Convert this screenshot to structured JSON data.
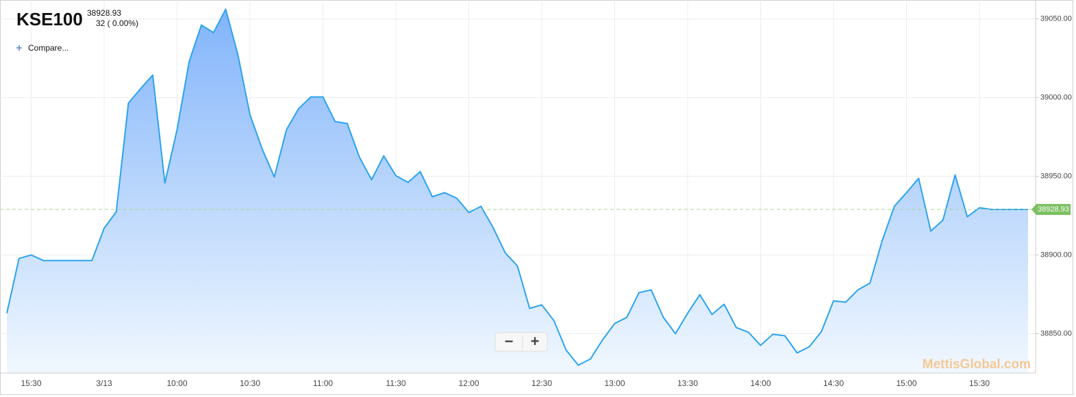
{
  "header": {
    "symbol": "KSE100",
    "price": "38928.93",
    "change": "32 ( 0.00%)",
    "compare": "Compare..."
  },
  "watermark": "MettisGlobal.com",
  "zoom": {
    "out": "−",
    "in": "+"
  },
  "chart_data": {
    "type": "area",
    "categories": [
      null,
      null,
      "15:30",
      null,
      null,
      null,
      null,
      null,
      "3/13",
      null,
      null,
      null,
      null,
      null,
      "10:00",
      null,
      null,
      null,
      null,
      null,
      "10:30",
      null,
      null,
      null,
      null,
      null,
      "11:00",
      null,
      null,
      null,
      null,
      null,
      "11:30",
      null,
      null,
      null,
      null,
      null,
      "12:00",
      null,
      null,
      null,
      null,
      null,
      "12:30",
      null,
      null,
      null,
      null,
      null,
      "13:00",
      null,
      null,
      null,
      null,
      null,
      "13:30",
      null,
      null,
      null,
      null,
      null,
      "14:00",
      null,
      null,
      null,
      null,
      null,
      "14:30",
      null,
      null,
      null,
      null,
      null,
      "15:00",
      null,
      null,
      null,
      null,
      null,
      "15:30",
      null,
      null,
      null,
      null
    ],
    "values": [
      38863.0,
      38897.8,
      38900,
      38896.5,
      38896.5,
      38896.5,
      38896.5,
      38896.5,
      38917,
      38927.4,
      38996.5,
      39005.7,
      39014.3,
      38945.7,
      38979.6,
      39023,
      39046.1,
      39041.3,
      39056.1,
      39027.4,
      38989.1,
      38967.4,
      38949.6,
      38979.6,
      38993,
      39000.4,
      39000.4,
      38984.8,
      38983.5,
      38962.2,
      38947.8,
      38963,
      38950.4,
      38946.1,
      38953,
      38937,
      38939.6,
      38936.1,
      38927,
      38930.9,
      38917.4,
      38901.3,
      38893,
      38866.1,
      38868.3,
      38858.3,
      38839.6,
      38830,
      38833.9,
      38846.1,
      38856.5,
      38860.4,
      38876.1,
      38877.8,
      38860.4,
      38850,
      38863,
      38874.8,
      38862.2,
      38868.7,
      38853.9,
      38850.9,
      38842.6,
      38849.6,
      38848.7,
      38837.8,
      38841.7,
      38851.3,
      38870.9,
      38870,
      38877.8,
      38882.2,
      38909.1,
      38930.9,
      38939.6,
      38948.7,
      38915.2,
      38922.2,
      38950.9,
      38924.3,
      38930,
      38928.93,
      38928.93,
      38928.93,
      38928.93
    ],
    "color": "#2aa3ef",
    "last_value": {
      "value": 38928.93,
      "label": "38928.93"
    },
    "ylim": [
      38825,
      39062
    ],
    "yticks": [
      {
        "value": 38850,
        "label": "38850.00"
      },
      {
        "value": 38900,
        "label": "38900.00"
      },
      {
        "value": 38950,
        "label": "38950.00"
      },
      {
        "value": 39000,
        "label": "39000.00"
      },
      {
        "value": 39050,
        "label": "39050.00"
      }
    ],
    "grid": true
  }
}
